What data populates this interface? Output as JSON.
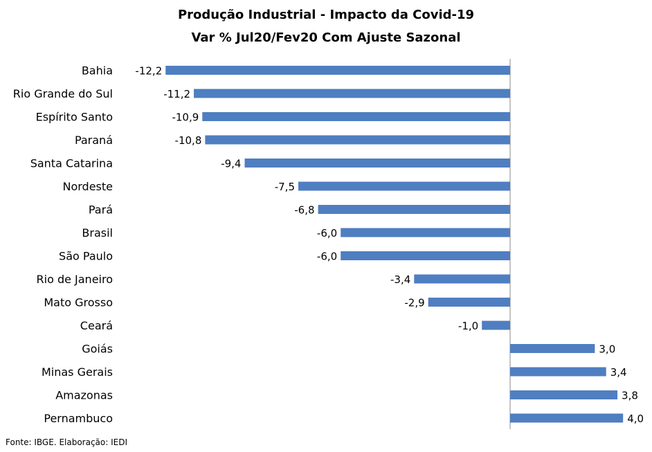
{
  "chart_data": {
    "type": "bar",
    "orientation": "horizontal",
    "title": "Produção Industrial - Impacto da Covid-19",
    "subtitle": "Var % Jul20/Fev20 Com Ajuste Sazonal",
    "categories": [
      "Bahia",
      "Rio Grande do Sul",
      "Espírito Santo",
      "Paraná",
      "Santa Catarina",
      "Nordeste",
      "Pará",
      "Brasil",
      "São Paulo",
      "Rio de Janeiro",
      "Mato Grosso",
      "Ceará",
      "Goiás",
      "Minas Gerais",
      "Amazonas",
      "Pernambuco"
    ],
    "values": [
      -12.2,
      -11.2,
      -10.9,
      -10.8,
      -9.4,
      -7.5,
      -6.8,
      -6.0,
      -6.0,
      -3.4,
      -2.9,
      -1.0,
      3.0,
      3.4,
      3.8,
      4.0
    ],
    "value_labels": [
      "-12,2",
      "-11,2",
      "-10,9",
      "-10,8",
      "-9,4",
      "-7,5",
      "-6,8",
      "-6,0",
      "-6,0",
      "-3,4",
      "-2,9",
      "-1,0",
      "3,0",
      "3,4",
      "3,8",
      "4,0"
    ],
    "xlim": [
      -12.2,
      4.0
    ],
    "grid": false,
    "legend": "none",
    "colors": {
      "bar": "#4f7ec1",
      "axis": "#888888"
    }
  },
  "source": "Fonte: IBGE. Elaboração: IEDI"
}
